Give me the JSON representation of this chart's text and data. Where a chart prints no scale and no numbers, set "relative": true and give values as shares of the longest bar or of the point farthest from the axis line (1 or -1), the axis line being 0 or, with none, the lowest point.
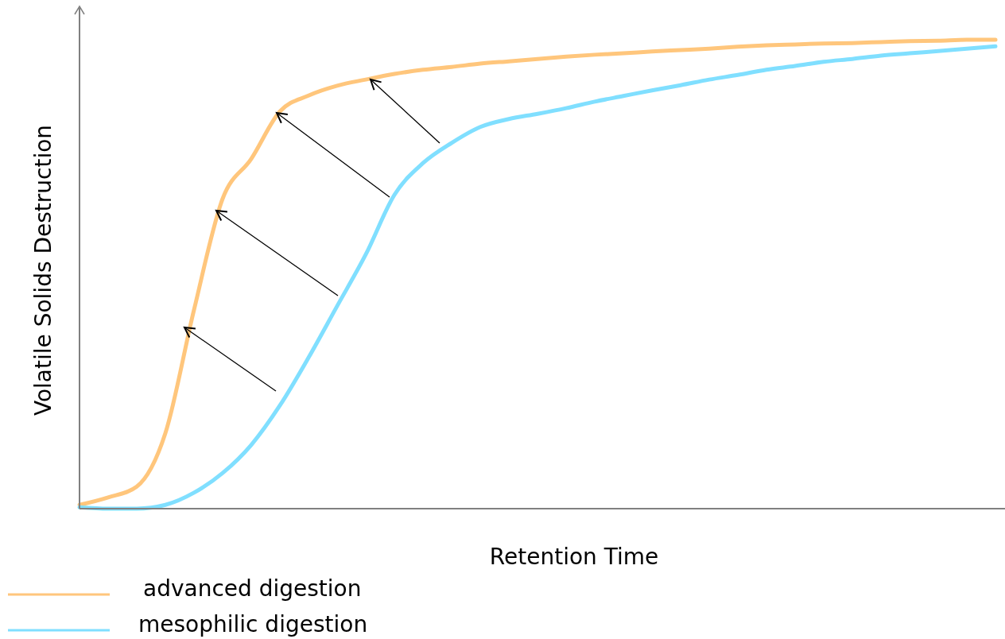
{
  "chart_data": {
    "type": "line",
    "relative": true,
    "xlabel": "Retention Time",
    "ylabel": "Volatile Solids Destruction",
    "legend": "bottom left",
    "marker": "none",
    "line_style": "solid",
    "categories": [
      null,
      null,
      null,
      null,
      null,
      null,
      null,
      null,
      null,
      null,
      null,
      null,
      null,
      null,
      null,
      null,
      null,
      null,
      null,
      null,
      null,
      null,
      null,
      null,
      null,
      null,
      null,
      null,
      null,
      null,
      null,
      null,
      null
    ],
    "series": [
      {
        "name": "advanced digestion",
        "color": "#ffc67c",
        "values": [
          0.008,
          0.024,
          0.047,
          0.161,
          0.424,
          0.661,
          0.746,
          0.847,
          0.881,
          0.902,
          0.915,
          0.927,
          0.936,
          0.942,
          0.949,
          0.954,
          0.959,
          0.964,
          0.968,
          0.971,
          0.975,
          0.978,
          0.981,
          0.985,
          0.988,
          0.99,
          0.992,
          0.993,
          0.995,
          0.997,
          0.998,
          1,
          1
        ]
      },
      {
        "name": "mesophilic digestion",
        "color": "#80dfff",
        "values": [
          0.003,
          0,
          0,
          0.008,
          0.034,
          0.076,
          0.136,
          0.22,
          0.322,
          0.432,
          0.542,
          0.669,
          0.737,
          0.78,
          0.814,
          0.831,
          0.842,
          0.854,
          0.868,
          0.88,
          0.892,
          0.903,
          0.915,
          0.925,
          0.936,
          0.944,
          0.953,
          0.959,
          0.966,
          0.971,
          0.976,
          0.981,
          0.986
        ]
      }
    ]
  }
}
